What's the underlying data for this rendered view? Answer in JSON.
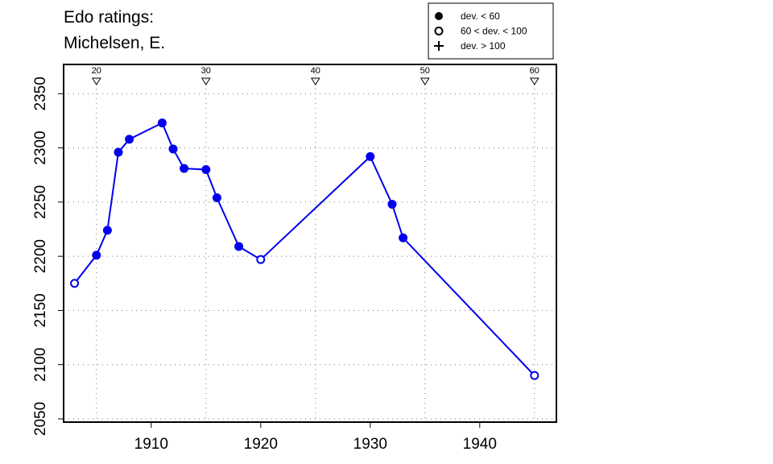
{
  "chart_data": {
    "type": "line",
    "title": "Edo ratings:",
    "subtitle": "Michelsen, E.",
    "xlabel": "",
    "ylabel": "",
    "xlim": [
      1902,
      1947
    ],
    "ylim": [
      2047,
      2377
    ],
    "x_ticks": [
      1910,
      1920,
      1930,
      1940
    ],
    "y_ticks": [
      2050,
      2100,
      2150,
      2200,
      2250,
      2300,
      2350
    ],
    "grid": true,
    "line_color": "#0000ee",
    "top_markers": [
      {
        "x": 1905,
        "label": "20"
      },
      {
        "x": 1915,
        "label": "30"
      },
      {
        "x": 1925,
        "label": "40"
      },
      {
        "x": 1935,
        "label": "50"
      },
      {
        "x": 1945,
        "label": "60"
      }
    ],
    "series": [
      {
        "points": [
          {
            "x": 1903,
            "y": 2175,
            "marker": "open"
          },
          {
            "x": 1905,
            "y": 2201,
            "marker": "filled"
          },
          {
            "x": 1906,
            "y": 2224,
            "marker": "filled"
          },
          {
            "x": 1907,
            "y": 2296,
            "marker": "filled"
          },
          {
            "x": 1908,
            "y": 2308,
            "marker": "filled"
          },
          {
            "x": 1911,
            "y": 2323,
            "marker": "filled"
          },
          {
            "x": 1912,
            "y": 2299,
            "marker": "filled"
          },
          {
            "x": 1913,
            "y": 2281,
            "marker": "filled"
          },
          {
            "x": 1915,
            "y": 2280,
            "marker": "filled"
          },
          {
            "x": 1916,
            "y": 2254,
            "marker": "filled"
          },
          {
            "x": 1918,
            "y": 2209,
            "marker": "filled"
          },
          {
            "x": 1920,
            "y": 2197,
            "marker": "open"
          },
          {
            "x": 1930,
            "y": 2292,
            "marker": "filled"
          },
          {
            "x": 1932,
            "y": 2248,
            "marker": "filled"
          },
          {
            "x": 1933,
            "y": 2217,
            "marker": "filled"
          },
          {
            "x": 1945,
            "y": 2090,
            "marker": "open"
          }
        ]
      }
    ],
    "legend": {
      "placement": "top-right",
      "entries": [
        {
          "symbol": "filled",
          "label": "dev. < 60"
        },
        {
          "symbol": "open",
          "label": "60 < dev. < 100"
        },
        {
          "symbol": "plus",
          "label": "dev. > 100"
        }
      ]
    }
  }
}
